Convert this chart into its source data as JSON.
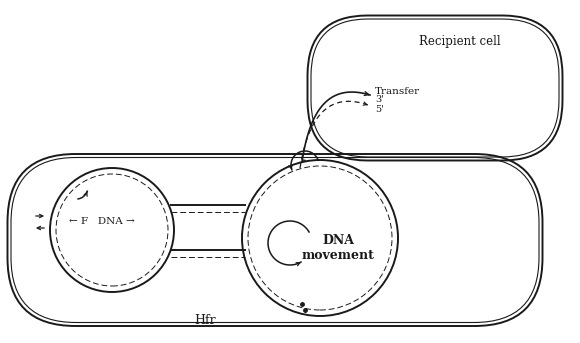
{
  "background_color": "#ffffff",
  "line_color": "#1a1a1a",
  "text_color": "#1a1a1a",
  "labels": {
    "recipient_cell": "Recipient cell",
    "transfer": "Transfer",
    "three_prime": "3'",
    "five_prime": "5'",
    "F": "F",
    "DNA": "DNA",
    "DNA_movement": "DNA\nmovement",
    "Hfr": "Hfr"
  },
  "figsize": [
    5.8,
    3.43
  ],
  "dpi": 100
}
